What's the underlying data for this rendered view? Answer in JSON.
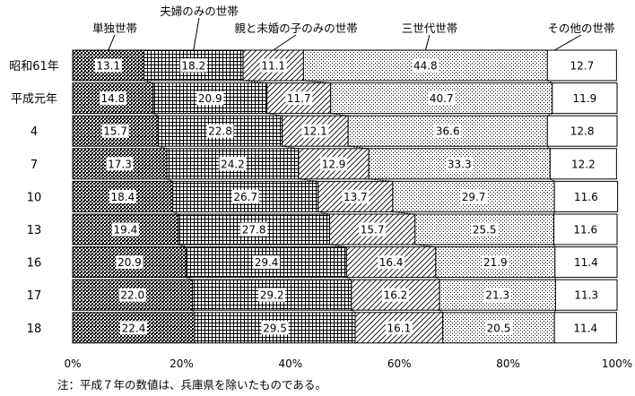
{
  "chart_data": {
    "type": "bar",
    "stacked": true,
    "orientation": "horizontal",
    "percent_stacked": true,
    "categories": [
      "昭和61年",
      "平成元年",
      "4",
      "7",
      "10",
      "13",
      "16",
      "17",
      "18"
    ],
    "series": [
      {
        "name": "単独世帯",
        "values": [
          13.1,
          14.8,
          15.7,
          17.3,
          18.4,
          19.4,
          20.9,
          22.0,
          22.4
        ],
        "pattern": "dense-checker"
      },
      {
        "name": "夫婦のみの世帯",
        "values": [
          18.2,
          20.9,
          22.8,
          24.2,
          26.7,
          27.8,
          29.4,
          29.2,
          29.5
        ],
        "pattern": "grid"
      },
      {
        "name": "親と未婚の子のみの世帯",
        "values": [
          11.1,
          11.7,
          12.1,
          12.9,
          13.7,
          15.7,
          16.4,
          16.2,
          16.1
        ],
        "pattern": "diagonal-hatch"
      },
      {
        "name": "三世代世帯",
        "values": [
          44.8,
          40.7,
          36.6,
          33.3,
          29.7,
          25.5,
          21.9,
          21.3,
          20.5
        ],
        "pattern": "sparse-dots"
      },
      {
        "name": "その他の世帯",
        "values": [
          12.7,
          11.9,
          12.8,
          12.2,
          11.6,
          11.6,
          11.4,
          11.3,
          11.4
        ],
        "pattern": "plain"
      }
    ],
    "x_ticks": [
      "0%",
      "20%",
      "40%",
      "60%",
      "80%",
      "100%"
    ],
    "xlim": [
      0,
      100
    ],
    "note": "注：平成７年の数値は、兵庫県を除いたものである。",
    "colors": {
      "ink": "#000000",
      "background": "#ffffff"
    }
  }
}
